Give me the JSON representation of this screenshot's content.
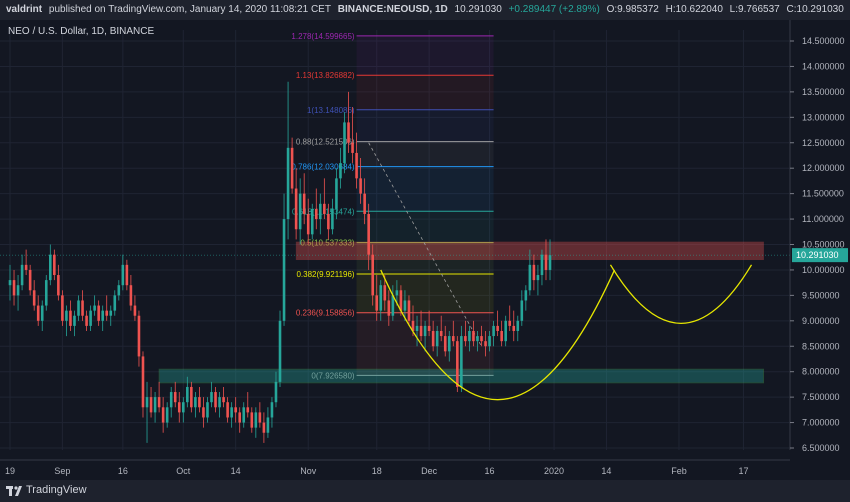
{
  "header": {
    "publisher": "valdrint",
    "published_text": "published on TradingView.com, January 14, 2020 11:08:21 CET",
    "symbol": "BINANCE:NEOUSD, 1D",
    "price": "10.291030",
    "change": "+0.289447 (+2.89%)",
    "o": "O:9.985372",
    "h": "H:10.622040",
    "l": "L:9.766537",
    "c": "C:10.291030"
  },
  "legend_title": "NEO / U.S. Dollar, 1D, BINANCE",
  "brand": "TradingView",
  "colors": {
    "up": "#26a69a",
    "down": "#ef5350",
    "yellow": "#e6e600"
  },
  "chart_data": {
    "type": "candlestick",
    "ylim": [
      6.5,
      14.5
    ],
    "y_ticks": [
      "14.500000",
      "14.000000",
      "13.500000",
      "13.000000",
      "12.500000",
      "12.000000",
      "11.500000",
      "11.000000",
      "10.500000",
      "10.000000",
      "9.500000",
      "9.000000",
      "8.500000",
      "8.000000",
      "7.500000",
      "7.000000",
      "6.500000"
    ],
    "y_tick_values": [
      14.5,
      14,
      13.5,
      13,
      12.5,
      12,
      11.5,
      11,
      10.5,
      10,
      9.5,
      9,
      8.5,
      8,
      7.5,
      7,
      6.5
    ],
    "x_ticks": [
      {
        "label": "19",
        "day": 0
      },
      {
        "label": "Sep",
        "day": 13
      },
      {
        "label": "16",
        "day": 28
      },
      {
        "label": "Oct",
        "day": 43
      },
      {
        "label": "14",
        "day": 56
      },
      {
        "label": "Nov",
        "day": 74
      },
      {
        "label": "18",
        "day": 91
      },
      {
        "label": "Dec",
        "day": 104
      },
      {
        "label": "16",
        "day": 119
      },
      {
        "label": "2020",
        "day": 135
      },
      {
        "label": "14",
        "day": 148
      },
      {
        "label": "Feb",
        "day": 166
      },
      {
        "label": "17",
        "day": 182
      }
    ],
    "x_range_days": [
      0,
      187
    ],
    "current_price": 10.29103,
    "current_price_label": "10.291030",
    "fib_levels": [
      {
        "label": "1.278(14.599665)",
        "value": 14.599665,
        "color": "#9c27b0"
      },
      {
        "label": "1.13(13.826882)",
        "value": 13.826882,
        "color": "#e53935"
      },
      {
        "label": "1(13.148086)",
        "value": 13.148086,
        "color": "#3f51b5"
      },
      {
        "label": "0.88(12.521506)",
        "value": 12.521506,
        "color": "#9e9e9e"
      },
      {
        "label": "0.786(12.030684)",
        "value": 12.030684,
        "color": "#2196f3"
      },
      {
        "label": "0.618(11.153474)",
        "value": 11.153474,
        "color": "#26a69a"
      },
      {
        "label": "0.5(10.537333)",
        "value": 10.537333,
        "color": "#8bc34a"
      },
      {
        "label": "0.382(9.921196)",
        "value": 9.921196,
        "color": "#e6e600"
      },
      {
        "label": "0.236(9.158856)",
        "value": 9.158856,
        "color": "#ef5350"
      },
      {
        "label": "0(7.926580)",
        "value": 7.92658,
        "color": "#9e9e9e"
      }
    ],
    "fib_range_days": [
      86,
      120
    ],
    "resistance_zone": {
      "from": 10.2,
      "to": 10.55,
      "start_day": 71,
      "end_day": 187
    },
    "support_zone": {
      "from": 7.78,
      "to": 8.05,
      "start_day": 37,
      "end_day": 187
    },
    "candles": [
      [
        9.7,
        10.1,
        9.4,
        9.8
      ],
      [
        9.8,
        10.0,
        9.3,
        9.5
      ],
      [
        9.5,
        9.9,
        9.2,
        9.7
      ],
      [
        9.7,
        10.3,
        9.6,
        10.1
      ],
      [
        10.1,
        10.4,
        9.9,
        10.0
      ],
      [
        10.0,
        10.1,
        9.5,
        9.6
      ],
      [
        9.6,
        9.8,
        9.2,
        9.3
      ],
      [
        9.3,
        9.5,
        8.9,
        9.0
      ],
      [
        9.0,
        9.4,
        8.8,
        9.3
      ],
      [
        9.3,
        9.9,
        9.2,
        9.8
      ],
      [
        9.8,
        10.5,
        9.7,
        10.3
      ],
      [
        10.3,
        10.4,
        9.8,
        9.9
      ],
      [
        9.9,
        10.1,
        9.4,
        9.5
      ],
      [
        9.5,
        9.6,
        8.9,
        9.0
      ],
      [
        9.0,
        9.3,
        8.7,
        9.2
      ],
      [
        9.2,
        9.4,
        8.8,
        8.9
      ],
      [
        8.9,
        9.2,
        8.7,
        9.1
      ],
      [
        9.1,
        9.5,
        9.0,
        9.4
      ],
      [
        9.4,
        9.6,
        9.0,
        9.1
      ],
      [
        9.1,
        9.2,
        8.8,
        8.9
      ],
      [
        8.9,
        9.3,
        8.8,
        9.2
      ],
      [
        9.2,
        9.5,
        9.1,
        9.3
      ],
      [
        9.3,
        9.4,
        8.9,
        9.0
      ],
      [
        9.0,
        9.3,
        8.8,
        9.2
      ],
      [
        9.2,
        9.5,
        9.0,
        9.1
      ],
      [
        9.1,
        9.3,
        8.9,
        9.2
      ],
      [
        9.2,
        9.6,
        9.1,
        9.5
      ],
      [
        9.5,
        9.8,
        9.4,
        9.7
      ],
      [
        9.7,
        10.3,
        9.6,
        10.1
      ],
      [
        10.1,
        10.2,
        9.6,
        9.7
      ],
      [
        9.7,
        9.9,
        9.2,
        9.3
      ],
      [
        9.3,
        9.5,
        9.0,
        9.1
      ],
      [
        9.1,
        9.2,
        8.1,
        8.3
      ],
      [
        8.3,
        8.4,
        7.1,
        7.3
      ],
      [
        7.3,
        7.8,
        6.6,
        7.5
      ],
      [
        7.5,
        7.7,
        7.1,
        7.2
      ],
      [
        7.2,
        7.6,
        7.0,
        7.5
      ],
      [
        7.5,
        7.8,
        7.2,
        7.3
      ],
      [
        7.3,
        7.5,
        6.8,
        7.0
      ],
      [
        7.0,
        7.4,
        6.9,
        7.3
      ],
      [
        7.3,
        7.7,
        7.1,
        7.6
      ],
      [
        7.6,
        7.8,
        7.3,
        7.4
      ],
      [
        7.4,
        7.6,
        7.0,
        7.2
      ],
      [
        7.2,
        7.5,
        7.0,
        7.4
      ],
      [
        7.4,
        7.9,
        7.3,
        7.7
      ],
      [
        7.7,
        7.8,
        7.2,
        7.3
      ],
      [
        7.3,
        7.6,
        7.1,
        7.5
      ],
      [
        7.5,
        7.7,
        7.2,
        7.3
      ],
      [
        7.3,
        7.5,
        6.9,
        7.1
      ],
      [
        7.1,
        7.5,
        7.0,
        7.4
      ],
      [
        7.4,
        7.8,
        7.3,
        7.6
      ],
      [
        7.6,
        7.7,
        7.2,
        7.3
      ],
      [
        7.3,
        7.6,
        7.1,
        7.5
      ],
      [
        7.5,
        7.7,
        7.3,
        7.4
      ],
      [
        7.4,
        7.5,
        7.0,
        7.1
      ],
      [
        7.1,
        7.4,
        6.9,
        7.3
      ],
      [
        7.3,
        7.5,
        7.0,
        7.2
      ],
      [
        7.2,
        7.3,
        6.8,
        7.0
      ],
      [
        7.0,
        7.4,
        6.9,
        7.3
      ],
      [
        7.3,
        7.6,
        7.1,
        7.2
      ],
      [
        7.2,
        7.3,
        6.8,
        6.9
      ],
      [
        6.9,
        7.3,
        6.7,
        7.2
      ],
      [
        7.2,
        7.4,
        6.9,
        7.0
      ],
      [
        7.0,
        7.2,
        6.6,
        6.8
      ],
      [
        6.8,
        7.3,
        6.7,
        7.1
      ],
      [
        7.1,
        7.5,
        6.9,
        7.4
      ],
      [
        7.4,
        8.0,
        7.3,
        7.8
      ],
      [
        7.8,
        9.2,
        7.7,
        9.0
      ],
      [
        9.0,
        11.5,
        8.9,
        11.0
      ],
      [
        11.0,
        13.7,
        10.6,
        12.4
      ],
      [
        12.4,
        12.6,
        11.5,
        11.6
      ],
      [
        11.6,
        12.0,
        10.6,
        10.8
      ],
      [
        10.8,
        11.8,
        10.5,
        11.5
      ],
      [
        11.5,
        11.9,
        10.9,
        11.1
      ],
      [
        11.1,
        11.4,
        10.5,
        10.7
      ],
      [
        10.7,
        11.3,
        10.6,
        11.2
      ],
      [
        11.2,
        11.6,
        10.8,
        11.0
      ],
      [
        11.0,
        11.5,
        10.7,
        11.3
      ],
      [
        11.3,
        11.8,
        11.0,
        11.1
      ],
      [
        11.1,
        11.3,
        10.6,
        10.8
      ],
      [
        10.8,
        11.4,
        10.7,
        11.2
      ],
      [
        11.2,
        12.0,
        11.0,
        11.8
      ],
      [
        11.8,
        12.4,
        11.6,
        12.1
      ],
      [
        12.1,
        13.1,
        11.9,
        12.9
      ],
      [
        12.9,
        13.5,
        12.3,
        12.5
      ],
      [
        12.5,
        13.2,
        12.1,
        12.3
      ],
      [
        12.3,
        12.7,
        11.6,
        11.8
      ],
      [
        11.8,
        12.2,
        11.3,
        11.5
      ],
      [
        11.5,
        11.8,
        10.9,
        11.1
      ],
      [
        11.1,
        11.3,
        10.0,
        10.3
      ],
      [
        10.3,
        10.5,
        9.3,
        9.5
      ],
      [
        9.5,
        9.9,
        9.0,
        9.2
      ],
      [
        9.2,
        9.8,
        9.0,
        9.7
      ],
      [
        9.7,
        9.9,
        9.2,
        9.4
      ],
      [
        9.4,
        9.6,
        8.9,
        9.1
      ],
      [
        9.1,
        9.7,
        9.0,
        9.5
      ],
      [
        9.5,
        9.8,
        9.3,
        9.6
      ],
      [
        9.6,
        9.7,
        9.1,
        9.2
      ],
      [
        9.2,
        9.6,
        9.0,
        9.4
      ],
      [
        9.4,
        9.5,
        8.9,
        9.0
      ],
      [
        9.0,
        9.3,
        8.7,
        8.8
      ],
      [
        8.8,
        9.1,
        8.5,
        8.9
      ],
      [
        8.9,
        9.2,
        8.6,
        8.7
      ],
      [
        8.7,
        9.0,
        8.4,
        8.9
      ],
      [
        8.9,
        9.2,
        8.7,
        8.8
      ],
      [
        8.8,
        9.0,
        8.4,
        8.5
      ],
      [
        8.5,
        8.9,
        8.3,
        8.8
      ],
      [
        8.8,
        9.1,
        8.6,
        8.7
      ],
      [
        8.7,
        8.9,
        8.3,
        8.4
      ],
      [
        8.4,
        8.8,
        8.2,
        8.7
      ],
      [
        8.7,
        9.0,
        8.5,
        8.6
      ],
      [
        8.6,
        8.7,
        7.6,
        7.7
      ],
      [
        7.7,
        8.9,
        7.6,
        8.7
      ],
      [
        8.7,
        9.0,
        8.5,
        8.6
      ],
      [
        8.6,
        8.9,
        8.4,
        8.8
      ],
      [
        8.8,
        9.0,
        8.5,
        8.6
      ],
      [
        8.6,
        8.8,
        8.4,
        8.7
      ],
      [
        8.7,
        8.9,
        8.5,
        8.6
      ],
      [
        8.6,
        8.8,
        8.3,
        8.5
      ],
      [
        8.5,
        8.8,
        8.4,
        8.7
      ],
      [
        8.7,
        9.0,
        8.5,
        8.9
      ],
      [
        8.9,
        9.2,
        8.7,
        8.8
      ],
      [
        8.8,
        9.0,
        8.5,
        8.6
      ],
      [
        8.6,
        9.1,
        8.5,
        9.0
      ],
      [
        9.0,
        9.3,
        8.8,
        8.9
      ],
      [
        8.9,
        9.2,
        8.6,
        8.8
      ],
      [
        8.8,
        9.1,
        8.6,
        9.0
      ],
      [
        9.0,
        9.6,
        8.9,
        9.4
      ],
      [
        9.4,
        9.7,
        9.2,
        9.6
      ],
      [
        9.6,
        10.4,
        9.5,
        10.1
      ],
      [
        10.1,
        10.3,
        9.6,
        9.8
      ],
      [
        9.8,
        10.1,
        9.5,
        9.9
      ],
      [
        9.9,
        10.4,
        9.7,
        10.3
      ],
      [
        10.3,
        10.6,
        9.8,
        10.0
      ],
      [
        10.0,
        10.6,
        9.8,
        10.29
      ]
    ],
    "cup_projection_1": {
      "start_day": 92,
      "end_day": 150,
      "top": 10.0,
      "bottom": 7.45
    },
    "cup_projection_2": {
      "start_day": 149,
      "end_day": 184,
      "top": 10.1,
      "bottom": 8.95
    },
    "trend_line": [
      [
        89,
        12.5
      ],
      [
        117,
        8.5
      ]
    ]
  }
}
